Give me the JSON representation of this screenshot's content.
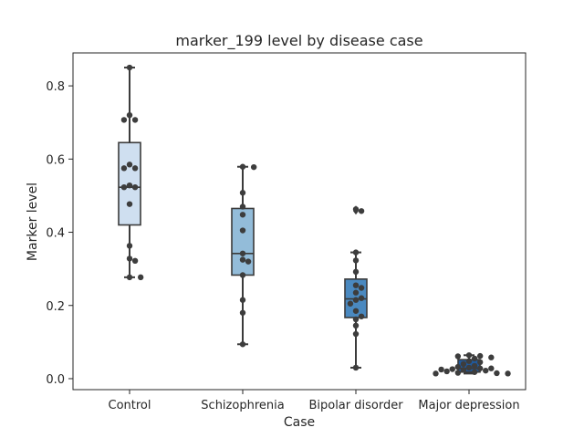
{
  "chart_data": {
    "type": "box",
    "title": "marker_199 level by disease case",
    "xlabel": "Case",
    "ylabel": "Marker level",
    "ylim": [
      -0.03,
      0.89
    ],
    "yticks": [
      0.0,
      0.2,
      0.4,
      0.6,
      0.8
    ],
    "ytick_labels": [
      "0.0",
      "0.2",
      "0.4",
      "0.6",
      "0.8"
    ],
    "grid": false,
    "categories": [
      "Control",
      "Schizophrenia",
      "Bipolar disorder",
      "Major depression"
    ],
    "box_colors": [
      "#cfdff0",
      "#93bcd9",
      "#4a89c0",
      "#1f5a9e"
    ],
    "boxes": [
      {
        "category": "Control",
        "whisker_low": 0.277,
        "q1": 0.42,
        "median": 0.523,
        "q3": 0.645,
        "whisker_high": 0.85,
        "outliers": []
      },
      {
        "category": "Schizophrenia",
        "whisker_low": 0.094,
        "q1": 0.283,
        "median": 0.342,
        "q3": 0.465,
        "whisker_high": 0.579,
        "outliers": []
      },
      {
        "category": "Bipolar disorder",
        "whisker_low": 0.03,
        "q1": 0.167,
        "median": 0.218,
        "q3": 0.272,
        "whisker_high": 0.345,
        "outliers": [
          0.458,
          0.463
        ]
      },
      {
        "category": "Major depression",
        "whisker_low": 0.014,
        "q1": 0.018,
        "median": 0.028,
        "q3": 0.052,
        "whisker_high": 0.064,
        "outliers": []
      }
    ],
    "points": [
      {
        "category": "Control",
        "values": [
          0.85,
          0.72,
          0.707,
          0.707,
          0.585,
          0.575,
          0.575,
          0.528,
          0.523,
          0.523,
          0.477,
          0.363,
          0.328,
          0.322,
          0.277,
          0.277
        ]
      },
      {
        "category": "Schizophrenia",
        "values": [
          0.579,
          0.578,
          0.508,
          0.47,
          0.448,
          0.405,
          0.342,
          0.325,
          0.32,
          0.283,
          0.215,
          0.18,
          0.094
        ]
      },
      {
        "category": "Bipolar disorder",
        "values": [
          0.463,
          0.458,
          0.345,
          0.323,
          0.292,
          0.255,
          0.248,
          0.235,
          0.22,
          0.215,
          0.205,
          0.185,
          0.17,
          0.162,
          0.145,
          0.122,
          0.03
        ]
      },
      {
        "category": "Major depression",
        "values": [
          0.064,
          0.062,
          0.061,
          0.058,
          0.055,
          0.048,
          0.045,
          0.04,
          0.035,
          0.032,
          0.03,
          0.028,
          0.028,
          0.026,
          0.025,
          0.024,
          0.022,
          0.02,
          0.018,
          0.016,
          0.015,
          0.014,
          0.014
        ]
      }
    ]
  }
}
